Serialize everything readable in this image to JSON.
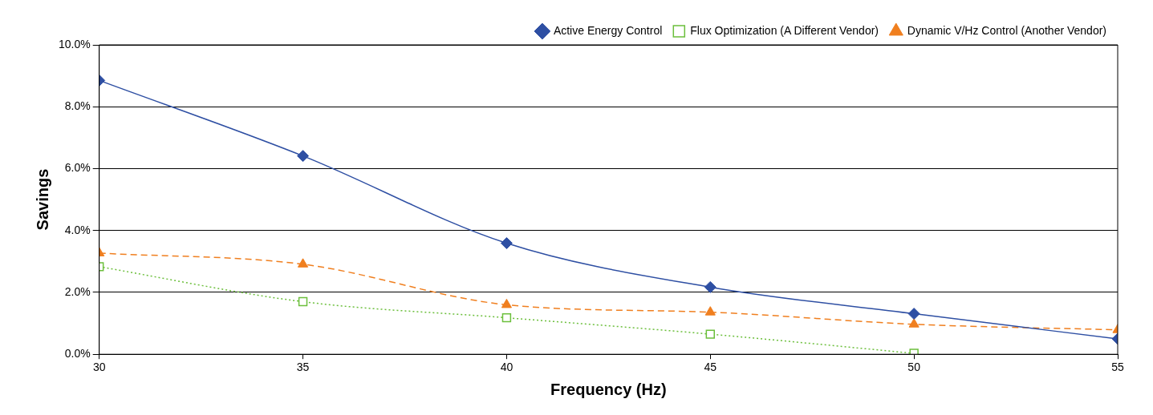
{
  "chart_data": {
    "type": "line",
    "xlabel": "Frequency (Hz)",
    "ylabel": "Savings",
    "x": [
      30,
      35,
      40,
      45,
      50,
      55
    ],
    "xlim": [
      30,
      55
    ],
    "xticks": [
      30,
      35,
      40,
      45,
      50,
      55
    ],
    "ylim": [
      0,
      10
    ],
    "yticks": [
      {
        "value": 0,
        "label": "0.0%"
      },
      {
        "value": 2,
        "label": "2.0%"
      },
      {
        "value": 4,
        "label": "4.0%"
      },
      {
        "value": 6,
        "label": "6.0%"
      },
      {
        "value": 8,
        "label": "8.0%"
      },
      {
        "value": 10,
        "label": "10.0%"
      }
    ],
    "grid": "y",
    "legend": "top right",
    "series": [
      {
        "name": "Active Energy Control",
        "color": "#2e4fa3",
        "marker": "diamond",
        "line_style": "solid",
        "values": [
          8.85,
          6.41,
          3.59,
          2.17,
          1.31,
          0.5
        ]
      },
      {
        "name": "Flux Optimization (A Different Vendor)",
        "color": "#6cbf3c",
        "marker": "square",
        "line_style": "dotted",
        "values": [
          2.83,
          1.7,
          1.18,
          0.65,
          0.03,
          null
        ]
      },
      {
        "name": "Dynamic V/Hz Control (Another Vendor)",
        "color": "#f07f1f",
        "marker": "triangle",
        "line_style": "dashed",
        "values": [
          3.27,
          2.91,
          1.6,
          1.36,
          0.97,
          0.79
        ]
      }
    ]
  }
}
